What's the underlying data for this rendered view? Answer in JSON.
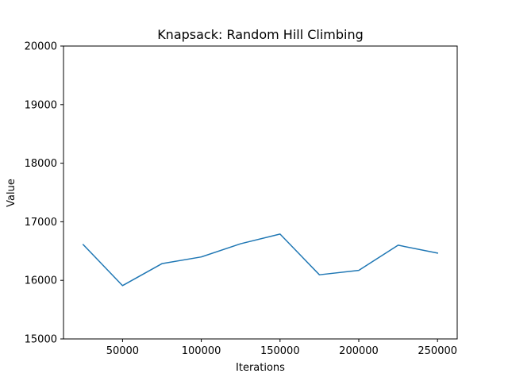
{
  "chart_data": {
    "type": "line",
    "title": "Knapsack: Random Hill Climbing",
    "xlabel": "Iterations",
    "ylabel": "Value",
    "xlim": [
      12500,
      262500
    ],
    "ylim": [
      15000,
      20000
    ],
    "xticks": [
      50000,
      100000,
      150000,
      200000,
      250000
    ],
    "yticks": [
      15000,
      16000,
      17000,
      18000,
      19000,
      20000
    ],
    "grid": false,
    "series": [
      {
        "color": "#1f77b4",
        "x": [
          25000,
          50000,
          75000,
          100000,
          125000,
          150000,
          175000,
          200000,
          225000,
          250000
        ],
        "y": [
          16610,
          15910,
          16285,
          16400,
          16625,
          16790,
          16095,
          16170,
          16600,
          16465
        ]
      }
    ]
  }
}
